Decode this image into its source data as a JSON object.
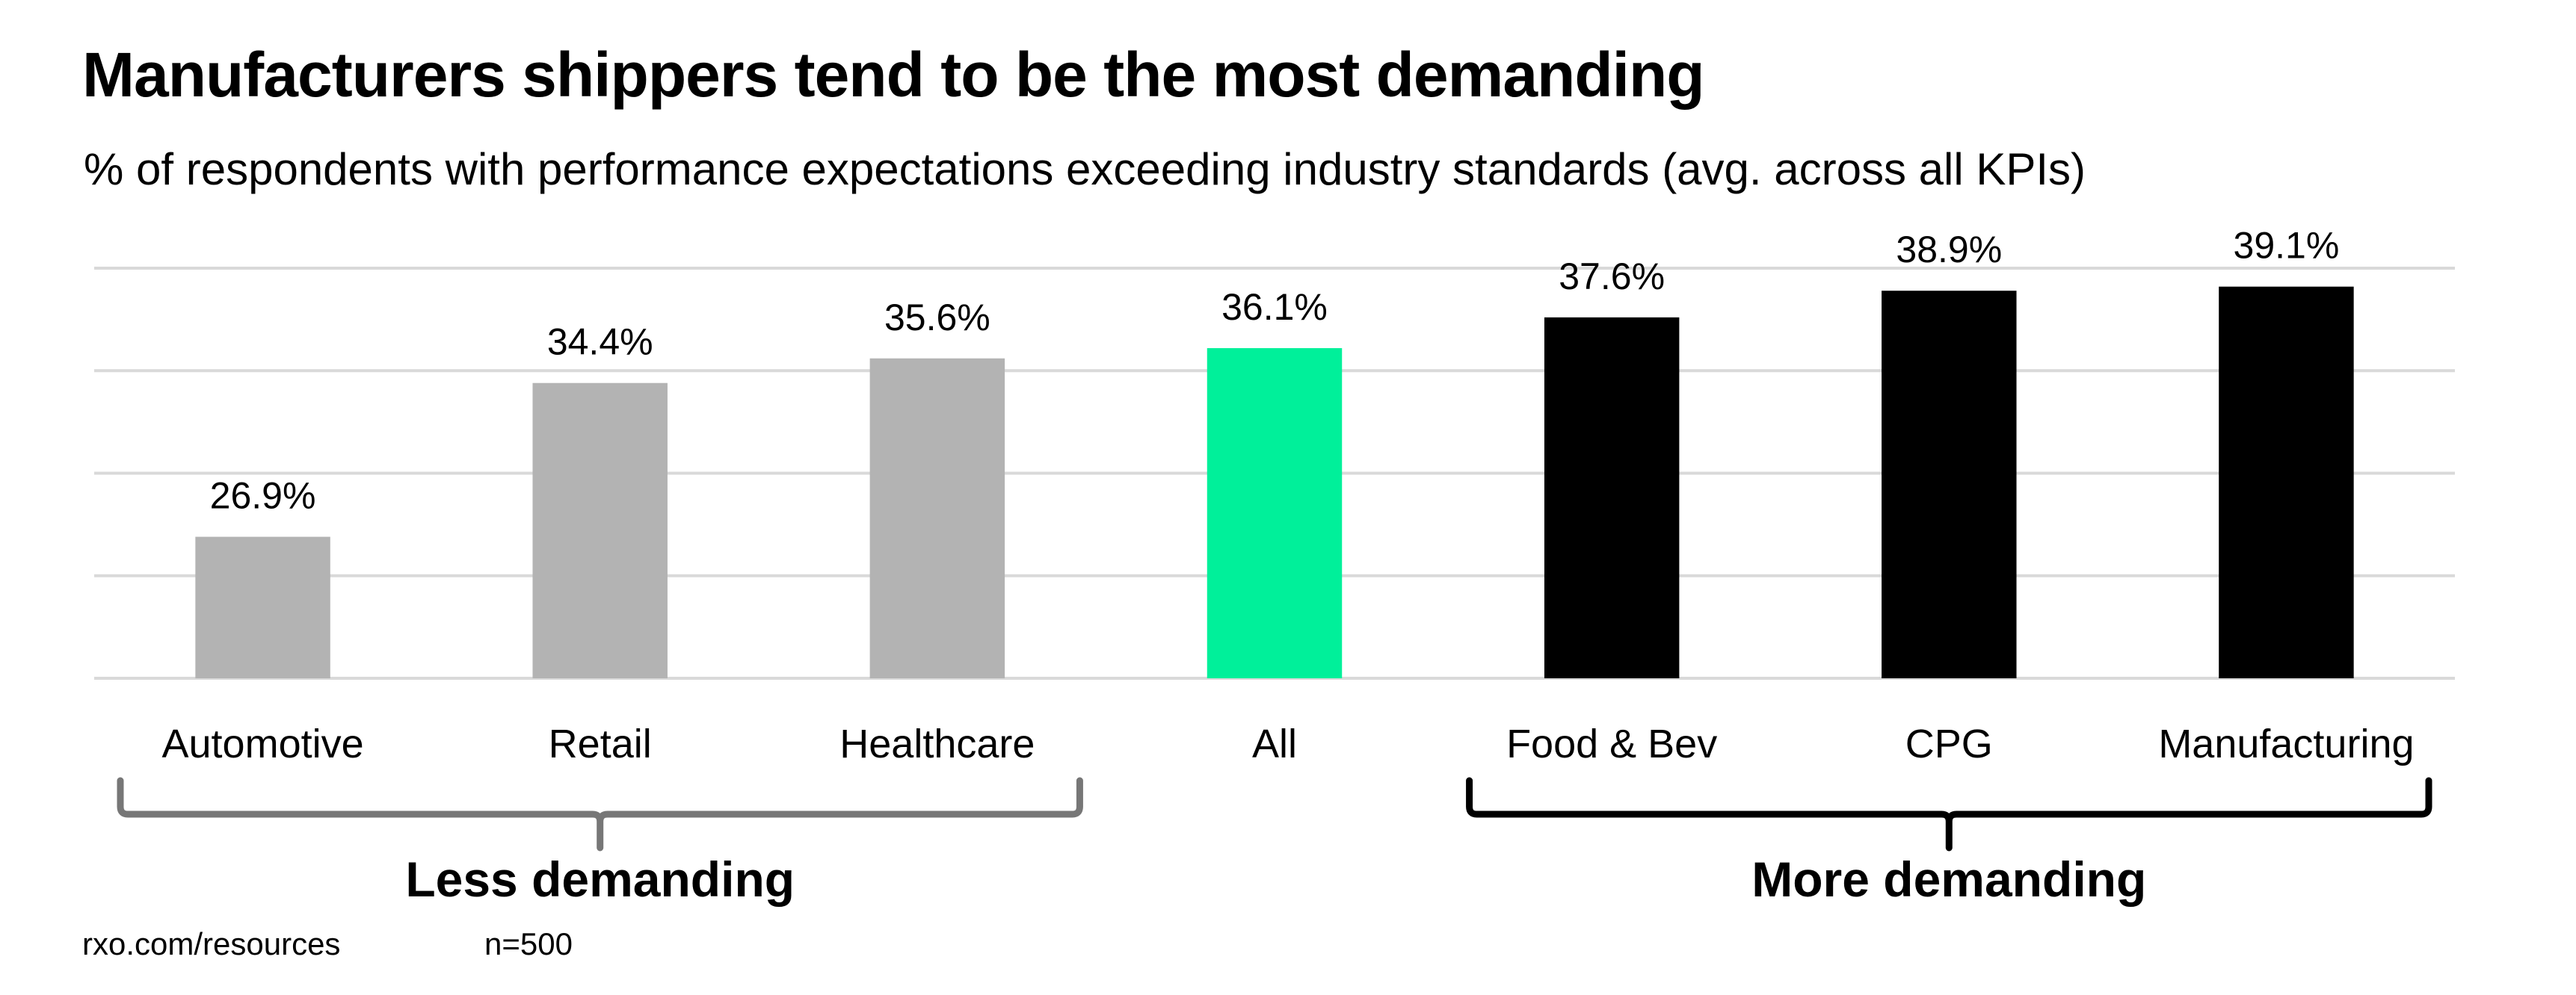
{
  "chart_data": {
    "type": "bar",
    "title": "Manufacturers shippers tend to be the most demanding",
    "subtitle": "% of respondents with performance expectations exceeding industry standards (avg. across all KPIs)",
    "categories": [
      "Automotive",
      "Retail",
      "Healthcare",
      "All",
      "Food & Bev",
      "CPG",
      "Manufacturing"
    ],
    "values": [
      26.9,
      34.4,
      35.6,
      36.1,
      37.6,
      38.9,
      39.1
    ],
    "data_labels": [
      "26.9%",
      "34.4%",
      "35.6%",
      "36.1%",
      "37.6%",
      "38.9%",
      "39.1%"
    ],
    "bar_colors": [
      "#b3b3b3",
      "#b3b3b3",
      "#b3b3b3",
      "#00f09a",
      "#000000",
      "#000000",
      "#000000"
    ],
    "ylim": [
      20,
      40
    ],
    "gridlines": [
      20,
      25,
      30,
      35,
      40
    ],
    "grid": true,
    "xlabel": "",
    "ylabel": "",
    "groups": [
      {
        "label": "Less demanding",
        "from": "Automotive",
        "to": "Healthcare",
        "color": "#777777"
      },
      {
        "label": "More demanding",
        "from": "Food & Bev",
        "to": "Manufacturing",
        "color": "#000000"
      }
    ]
  },
  "footer": {
    "source": "rxo.com/resources",
    "sample": "n=500"
  }
}
